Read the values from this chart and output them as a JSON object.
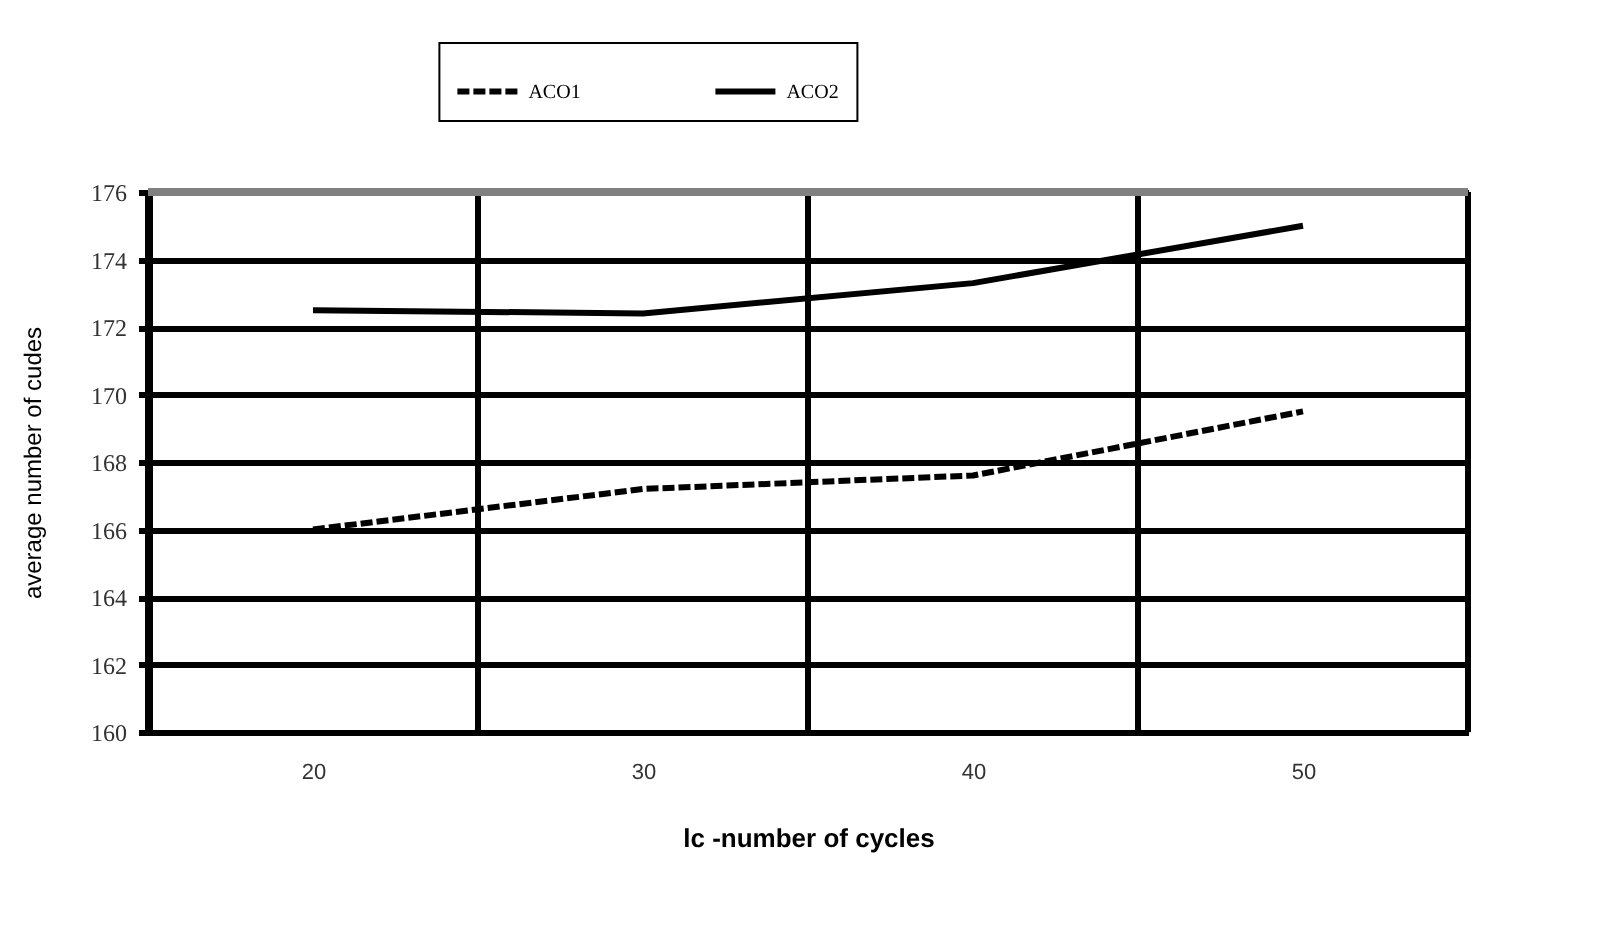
{
  "chart_data": {
    "type": "line",
    "xlabel": "lc -number of cycles",
    "ylabel": "average number of cudes",
    "categories": [
      "20",
      "30",
      "40",
      "50"
    ],
    "series": [
      {
        "name": "ACO1",
        "color": "#000000",
        "line_style": "dashed",
        "values": [
          166.0,
          167.2,
          167.6,
          169.5
        ]
      },
      {
        "name": "ACO2",
        "color": "#000000",
        "line_style": "solid",
        "values": [
          172.5,
          172.4,
          173.3,
          175.0
        ]
      }
    ],
    "ylim": [
      160,
      176
    ],
    "yticks": [
      160,
      162,
      164,
      166,
      168,
      170,
      172,
      174,
      176
    ],
    "grid": true,
    "legend": "top",
    "marker": "none"
  }
}
